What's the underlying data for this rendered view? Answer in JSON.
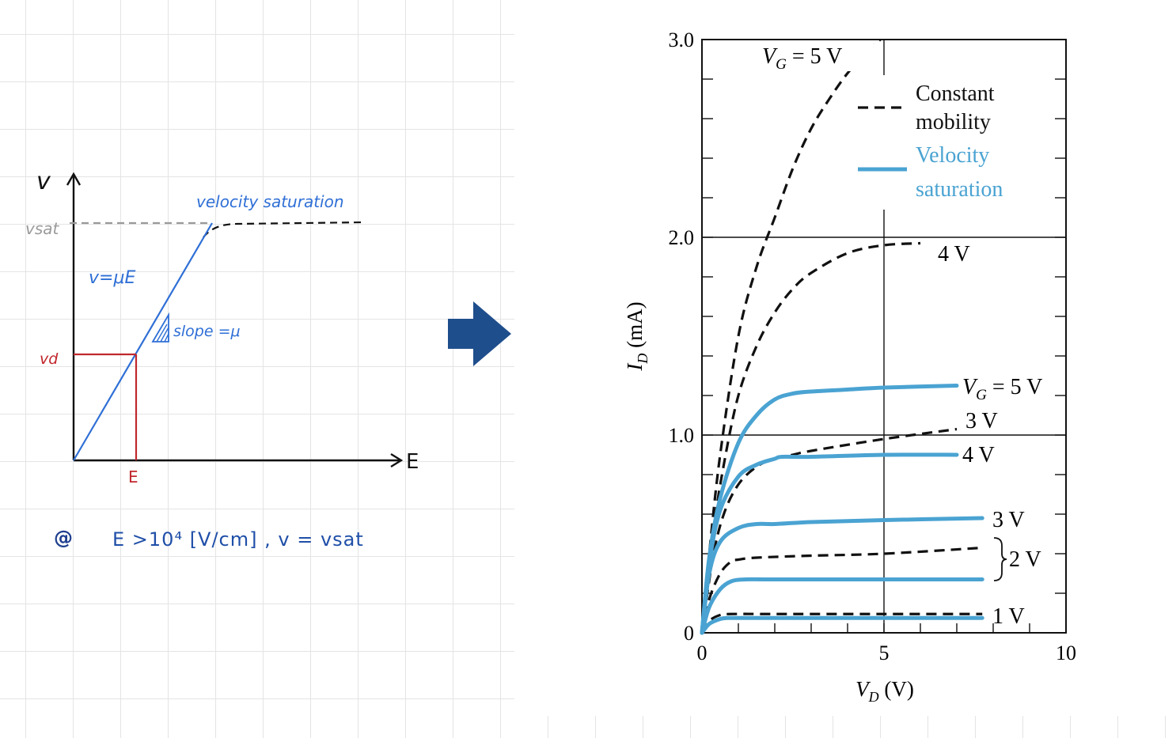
{
  "sketch": {
    "y_axis_label": "v",
    "x_axis_label": "E",
    "vsat_label": "vsat",
    "vd_label": "vd",
    "e_label": "E",
    "curve_label": "velocity saturation",
    "equation": "v=μE",
    "slope_label": "slope =μ",
    "note_bullet": "@",
    "note_text": "E >10⁴ [V/cm] ,  v = vsat",
    "colors": {
      "blue": "#2f6fd6",
      "red": "#c0282d",
      "black": "#111111",
      "gray": "#9a9a9a"
    }
  },
  "arrow": {
    "icon": "right-arrow-icon",
    "color": "#1f4e8c"
  },
  "chart_data": {
    "type": "line",
    "xlabel": "V_D (V)",
    "ylabel": "I_D (mA)",
    "xlim": [
      0,
      10
    ],
    "ylim": [
      0,
      3.0
    ],
    "xticks": [
      "0",
      "5",
      "10"
    ],
    "yticks": [
      "0",
      "1.0",
      "2.0",
      "3.0"
    ],
    "grid": true,
    "legend": {
      "placement": "top-right",
      "entries": [
        {
          "label_lines": [
            "Constant",
            "mobility"
          ],
          "style": "dashed",
          "color": "#111111"
        },
        {
          "label_lines": [
            "Velocity",
            "saturation"
          ],
          "style": "solid",
          "color": "#4aa3d2"
        }
      ]
    },
    "series": [
      {
        "style": "dashed",
        "color": "#111111",
        "label": "V_G = 5 V",
        "x": [
          0,
          0.2,
          0.5,
          1.0,
          1.5,
          2.0,
          2.5,
          3.0,
          3.5,
          4.0,
          4.5,
          4.9
        ],
        "y": [
          0,
          0.4,
          0.9,
          1.5,
          1.85,
          2.1,
          2.35,
          2.55,
          2.7,
          2.83,
          2.93,
          3.0
        ]
      },
      {
        "style": "dashed",
        "color": "#111111",
        "label": "4 V",
        "x": [
          0,
          0.3,
          0.6,
          1.0,
          1.5,
          2.0,
          2.5,
          3.0,
          4.0,
          5.0,
          6.0
        ],
        "y": [
          0,
          0.5,
          0.85,
          1.2,
          1.45,
          1.62,
          1.74,
          1.82,
          1.92,
          1.96,
          1.97
        ]
      },
      {
        "style": "dashed",
        "color": "#111111",
        "label": "3 V",
        "x": [
          0,
          0.3,
          0.6,
          1.0,
          1.5,
          2.0,
          2.5,
          3.0,
          5.0,
          7.0
        ],
        "y": [
          0,
          0.38,
          0.6,
          0.75,
          0.84,
          0.88,
          0.9,
          0.92,
          0.98,
          1.03
        ]
      },
      {
        "style": "dashed",
        "color": "#111111",
        "label": "2 V",
        "x": [
          0,
          0.2,
          0.5,
          0.8,
          1.0,
          1.5,
          3.0,
          5.0,
          7.7
        ],
        "y": [
          0,
          0.17,
          0.3,
          0.36,
          0.37,
          0.38,
          0.39,
          0.4,
          0.43
        ]
      },
      {
        "style": "dashed",
        "color": "#111111",
        "label": "1 V",
        "x": [
          0,
          0.2,
          0.5,
          0.8,
          2.0,
          5.0,
          7.7
        ],
        "y": [
          0,
          0.06,
          0.09,
          0.095,
          0.095,
          0.095,
          0.095
        ]
      },
      {
        "style": "solid",
        "color": "#4aa3d2",
        "label": "V_G = 5 V",
        "x": [
          0,
          0.2,
          0.5,
          1.0,
          1.5,
          2.0,
          2.5,
          3.0,
          4.0,
          5.0,
          7.0
        ],
        "y": [
          0,
          0.38,
          0.68,
          0.96,
          1.1,
          1.18,
          1.21,
          1.22,
          1.23,
          1.24,
          1.25
        ]
      },
      {
        "style": "solid",
        "color": "#4aa3d2",
        "label": "4 V",
        "x": [
          0,
          0.2,
          0.5,
          1.0,
          1.5,
          2.0,
          2.2,
          3.0,
          5.0,
          7.0
        ],
        "y": [
          0,
          0.35,
          0.62,
          0.79,
          0.85,
          0.88,
          0.89,
          0.89,
          0.9,
          0.9
        ]
      },
      {
        "style": "solid",
        "color": "#4aa3d2",
        "label": "3 V",
        "x": [
          0,
          0.2,
          0.5,
          1.0,
          1.5,
          2.0,
          3.0,
          5.0,
          7.7
        ],
        "y": [
          0,
          0.3,
          0.46,
          0.53,
          0.55,
          0.55,
          0.56,
          0.57,
          0.58
        ]
      },
      {
        "style": "solid",
        "color": "#4aa3d2",
        "label": "2 V",
        "x": [
          0,
          0.2,
          0.5,
          0.8,
          1.2,
          2.0,
          5.0,
          7.7
        ],
        "y": [
          0,
          0.13,
          0.22,
          0.26,
          0.27,
          0.27,
          0.27,
          0.27
        ]
      },
      {
        "style": "solid",
        "color": "#4aa3d2",
        "label": "1 V",
        "x": [
          0,
          0.2,
          0.5,
          0.7,
          1.0,
          3.0,
          7.7
        ],
        "y": [
          0,
          0.045,
          0.07,
          0.075,
          0.075,
          0.075,
          0.075
        ]
      }
    ],
    "annotations": [
      "V_G = 5 V",
      "4 V",
      "V_G = 5 V",
      "3 V",
      "4 V",
      "3 V",
      "2 V",
      "1 V"
    ]
  }
}
